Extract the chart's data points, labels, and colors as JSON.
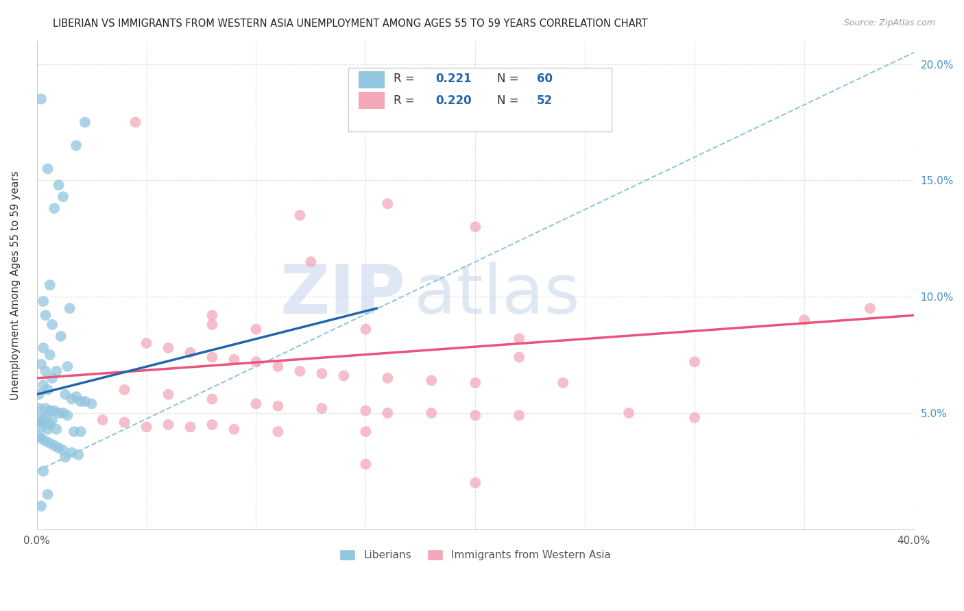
{
  "title": "LIBERIAN VS IMMIGRANTS FROM WESTERN ASIA UNEMPLOYMENT AMONG AGES 55 TO 59 YEARS CORRELATION CHART",
  "source": "Source: ZipAtlas.com",
  "ylabel": "Unemployment Among Ages 55 to 59 years",
  "xlim": [
    0,
    0.4
  ],
  "ylim": [
    0,
    0.21
  ],
  "watermark_zip": "ZIP",
  "watermark_atlas": "atlas",
  "liberian_color": "#92c5de",
  "western_asia_color": "#f4a7b9",
  "liberian_R": 0.221,
  "liberian_N": 60,
  "western_asia_R": 0.22,
  "western_asia_N": 52,
  "liberian_points": [
    [
      0.002,
      0.185
    ],
    [
      0.022,
      0.175
    ],
    [
      0.018,
      0.165
    ],
    [
      0.005,
      0.155
    ],
    [
      0.01,
      0.148
    ],
    [
      0.012,
      0.143
    ],
    [
      0.008,
      0.138
    ],
    [
      0.006,
      0.105
    ],
    [
      0.003,
      0.098
    ],
    [
      0.015,
      0.095
    ],
    [
      0.004,
      0.092
    ],
    [
      0.007,
      0.088
    ],
    [
      0.011,
      0.083
    ],
    [
      0.003,
      0.078
    ],
    [
      0.006,
      0.075
    ],
    [
      0.002,
      0.071
    ],
    [
      0.014,
      0.07
    ],
    [
      0.004,
      0.068
    ],
    [
      0.009,
      0.068
    ],
    [
      0.007,
      0.065
    ],
    [
      0.003,
      0.062
    ],
    [
      0.005,
      0.06
    ],
    [
      0.001,
      0.058
    ],
    [
      0.013,
      0.058
    ],
    [
      0.018,
      0.057
    ],
    [
      0.016,
      0.056
    ],
    [
      0.02,
      0.055
    ],
    [
      0.022,
      0.055
    ],
    [
      0.025,
      0.054
    ],
    [
      0.001,
      0.052
    ],
    [
      0.004,
      0.052
    ],
    [
      0.006,
      0.051
    ],
    [
      0.008,
      0.051
    ],
    [
      0.01,
      0.05
    ],
    [
      0.012,
      0.05
    ],
    [
      0.014,
      0.049
    ],
    [
      0.002,
      0.048
    ],
    [
      0.004,
      0.048
    ],
    [
      0.007,
      0.047
    ],
    [
      0.001,
      0.046
    ],
    [
      0.003,
      0.046
    ],
    [
      0.006,
      0.045
    ],
    [
      0.002,
      0.044
    ],
    [
      0.005,
      0.043
    ],
    [
      0.009,
      0.043
    ],
    [
      0.017,
      0.042
    ],
    [
      0.02,
      0.042
    ],
    [
      0.001,
      0.04
    ],
    [
      0.002,
      0.039
    ],
    [
      0.004,
      0.038
    ],
    [
      0.006,
      0.037
    ],
    [
      0.008,
      0.036
    ],
    [
      0.01,
      0.035
    ],
    [
      0.012,
      0.034
    ],
    [
      0.016,
      0.033
    ],
    [
      0.019,
      0.032
    ],
    [
      0.013,
      0.031
    ],
    [
      0.003,
      0.025
    ],
    [
      0.005,
      0.015
    ],
    [
      0.002,
      0.01
    ]
  ],
  "western_asia_points": [
    [
      0.045,
      0.175
    ],
    [
      0.12,
      0.135
    ],
    [
      0.125,
      0.115
    ],
    [
      0.16,
      0.14
    ],
    [
      0.2,
      0.13
    ],
    [
      0.08,
      0.092
    ],
    [
      0.08,
      0.088
    ],
    [
      0.1,
      0.086
    ],
    [
      0.15,
      0.086
    ],
    [
      0.22,
      0.082
    ],
    [
      0.22,
      0.074
    ],
    [
      0.3,
      0.072
    ],
    [
      0.35,
      0.09
    ],
    [
      0.38,
      0.095
    ],
    [
      0.05,
      0.08
    ],
    [
      0.06,
      0.078
    ],
    [
      0.07,
      0.076
    ],
    [
      0.08,
      0.074
    ],
    [
      0.09,
      0.073
    ],
    [
      0.1,
      0.072
    ],
    [
      0.11,
      0.07
    ],
    [
      0.12,
      0.068
    ],
    [
      0.13,
      0.067
    ],
    [
      0.14,
      0.066
    ],
    [
      0.16,
      0.065
    ],
    [
      0.18,
      0.064
    ],
    [
      0.2,
      0.063
    ],
    [
      0.24,
      0.063
    ],
    [
      0.04,
      0.06
    ],
    [
      0.06,
      0.058
    ],
    [
      0.08,
      0.056
    ],
    [
      0.1,
      0.054
    ],
    [
      0.11,
      0.053
    ],
    [
      0.13,
      0.052
    ],
    [
      0.15,
      0.051
    ],
    [
      0.16,
      0.05
    ],
    [
      0.18,
      0.05
    ],
    [
      0.2,
      0.049
    ],
    [
      0.22,
      0.049
    ],
    [
      0.03,
      0.047
    ],
    [
      0.04,
      0.046
    ],
    [
      0.06,
      0.045
    ],
    [
      0.08,
      0.045
    ],
    [
      0.05,
      0.044
    ],
    [
      0.07,
      0.044
    ],
    [
      0.09,
      0.043
    ],
    [
      0.11,
      0.042
    ],
    [
      0.15,
      0.042
    ],
    [
      0.15,
      0.028
    ],
    [
      0.2,
      0.02
    ],
    [
      0.3,
      0.048
    ],
    [
      0.27,
      0.05
    ]
  ],
  "bg_color": "#ffffff",
  "grid_color": "#e0e0e0",
  "trend_blue_color": "#2166ac",
  "trend_pink_color": "#e8547a",
  "trend_dash_color": "#92c5de",
  "blue_trend_x": [
    0.0,
    0.155
  ],
  "blue_trend_y": [
    0.058,
    0.095
  ],
  "pink_trend_x": [
    0.0,
    0.4
  ],
  "pink_trend_y": [
    0.065,
    0.092
  ],
  "dash_trend_x": [
    0.0,
    0.4
  ],
  "dash_trend_y": [
    0.025,
    0.205
  ]
}
